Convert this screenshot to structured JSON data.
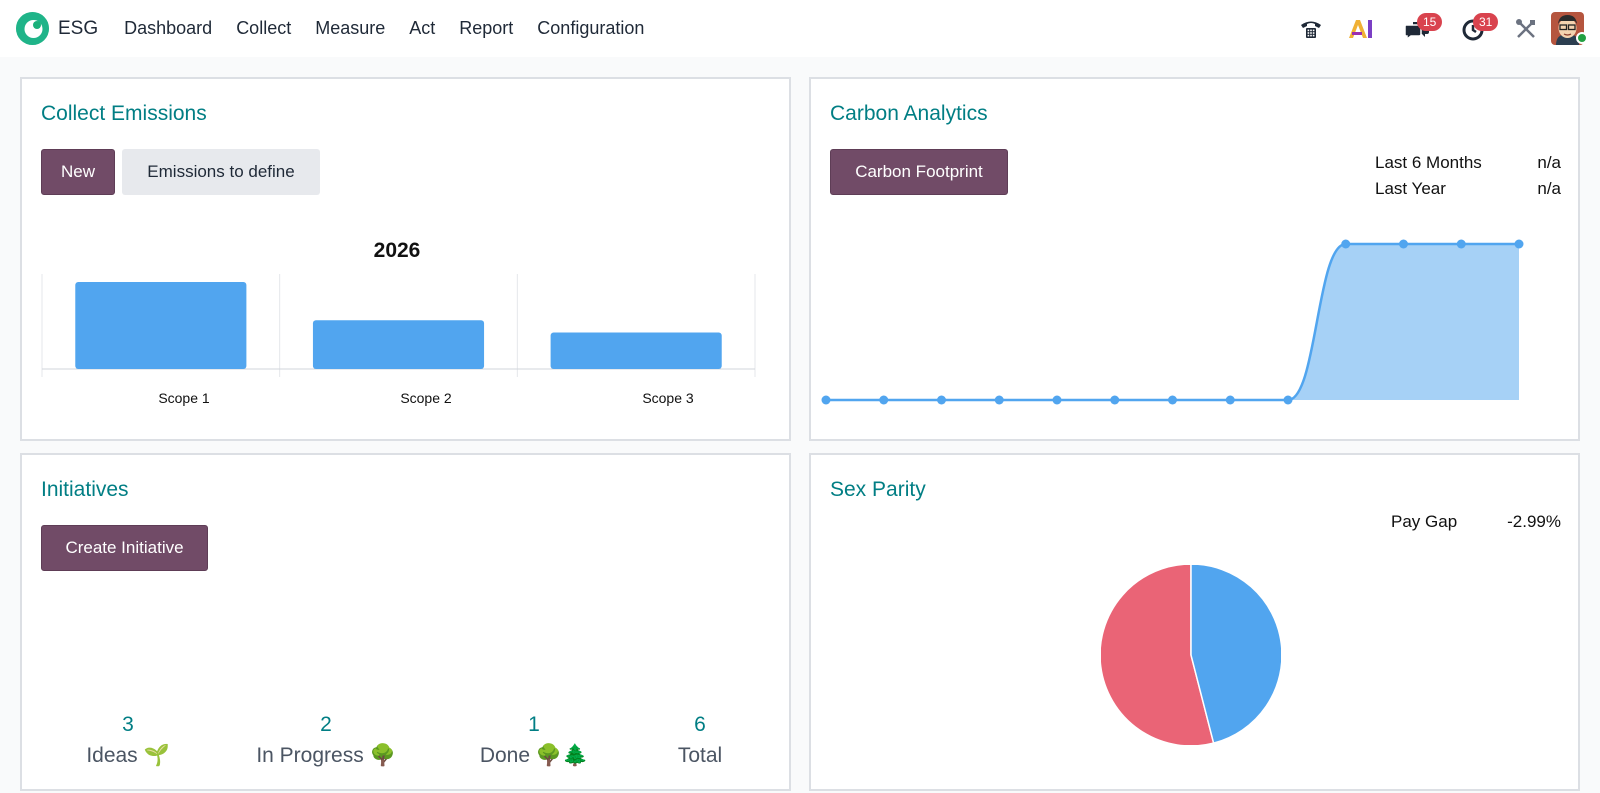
{
  "app": {
    "name": "ESG",
    "menu": [
      "Dashboard",
      "Collect",
      "Measure",
      "Act",
      "Report",
      "Configuration"
    ]
  },
  "systray": {
    "phone_icon": "phone-icon",
    "ai_icon": "ai-icon",
    "messages_count": "15",
    "activities_count": "31",
    "tools_icon": "tools-icon"
  },
  "collect": {
    "title": "Collect Emissions",
    "new_label": "New",
    "define_label": "Emissions to define"
  },
  "carbon": {
    "title": "Carbon Analytics",
    "button_label": "Carbon Footprint",
    "stats": [
      {
        "label": "Last 6 Months",
        "value": "n/a"
      },
      {
        "label": "Last Year",
        "value": "n/a"
      }
    ]
  },
  "initiatives": {
    "title": "Initiatives",
    "button_label": "Create Initiative",
    "kpis": [
      {
        "value": "3",
        "label": "Ideas 🌱"
      },
      {
        "value": "2",
        "label": "In Progress 🌳"
      },
      {
        "value": "1",
        "label": "Done 🌳🌲"
      },
      {
        "value": "6",
        "label": "Total"
      }
    ]
  },
  "parity": {
    "title": "Sex Parity",
    "pay_gap_label": "Pay Gap",
    "pay_gap_value": "-2.99%"
  },
  "colors": {
    "accent": "#017e84",
    "primary": "#714b67",
    "series_blue": "#51a5ef",
    "area_fill": "#a6d1f6",
    "series_red": "#ea6476"
  },
  "chart_data": [
    {
      "type": "bar",
      "title": "2026",
      "categories": [
        "Scope 1",
        "Scope 2",
        "Scope 3"
      ],
      "values": [
        100,
        56,
        42
      ]
    },
    {
      "type": "area",
      "x": [
        1,
        2,
        3,
        4,
        5,
        6,
        7,
        8,
        9,
        10,
        11,
        12,
        13
      ],
      "values": [
        0,
        0,
        0,
        0,
        0,
        0,
        0,
        0,
        0,
        1,
        1,
        1,
        1
      ]
    },
    {
      "type": "pie",
      "values": [
        54,
        46
      ],
      "colors": [
        "#ea6476",
        "#51a5ef"
      ]
    }
  ]
}
